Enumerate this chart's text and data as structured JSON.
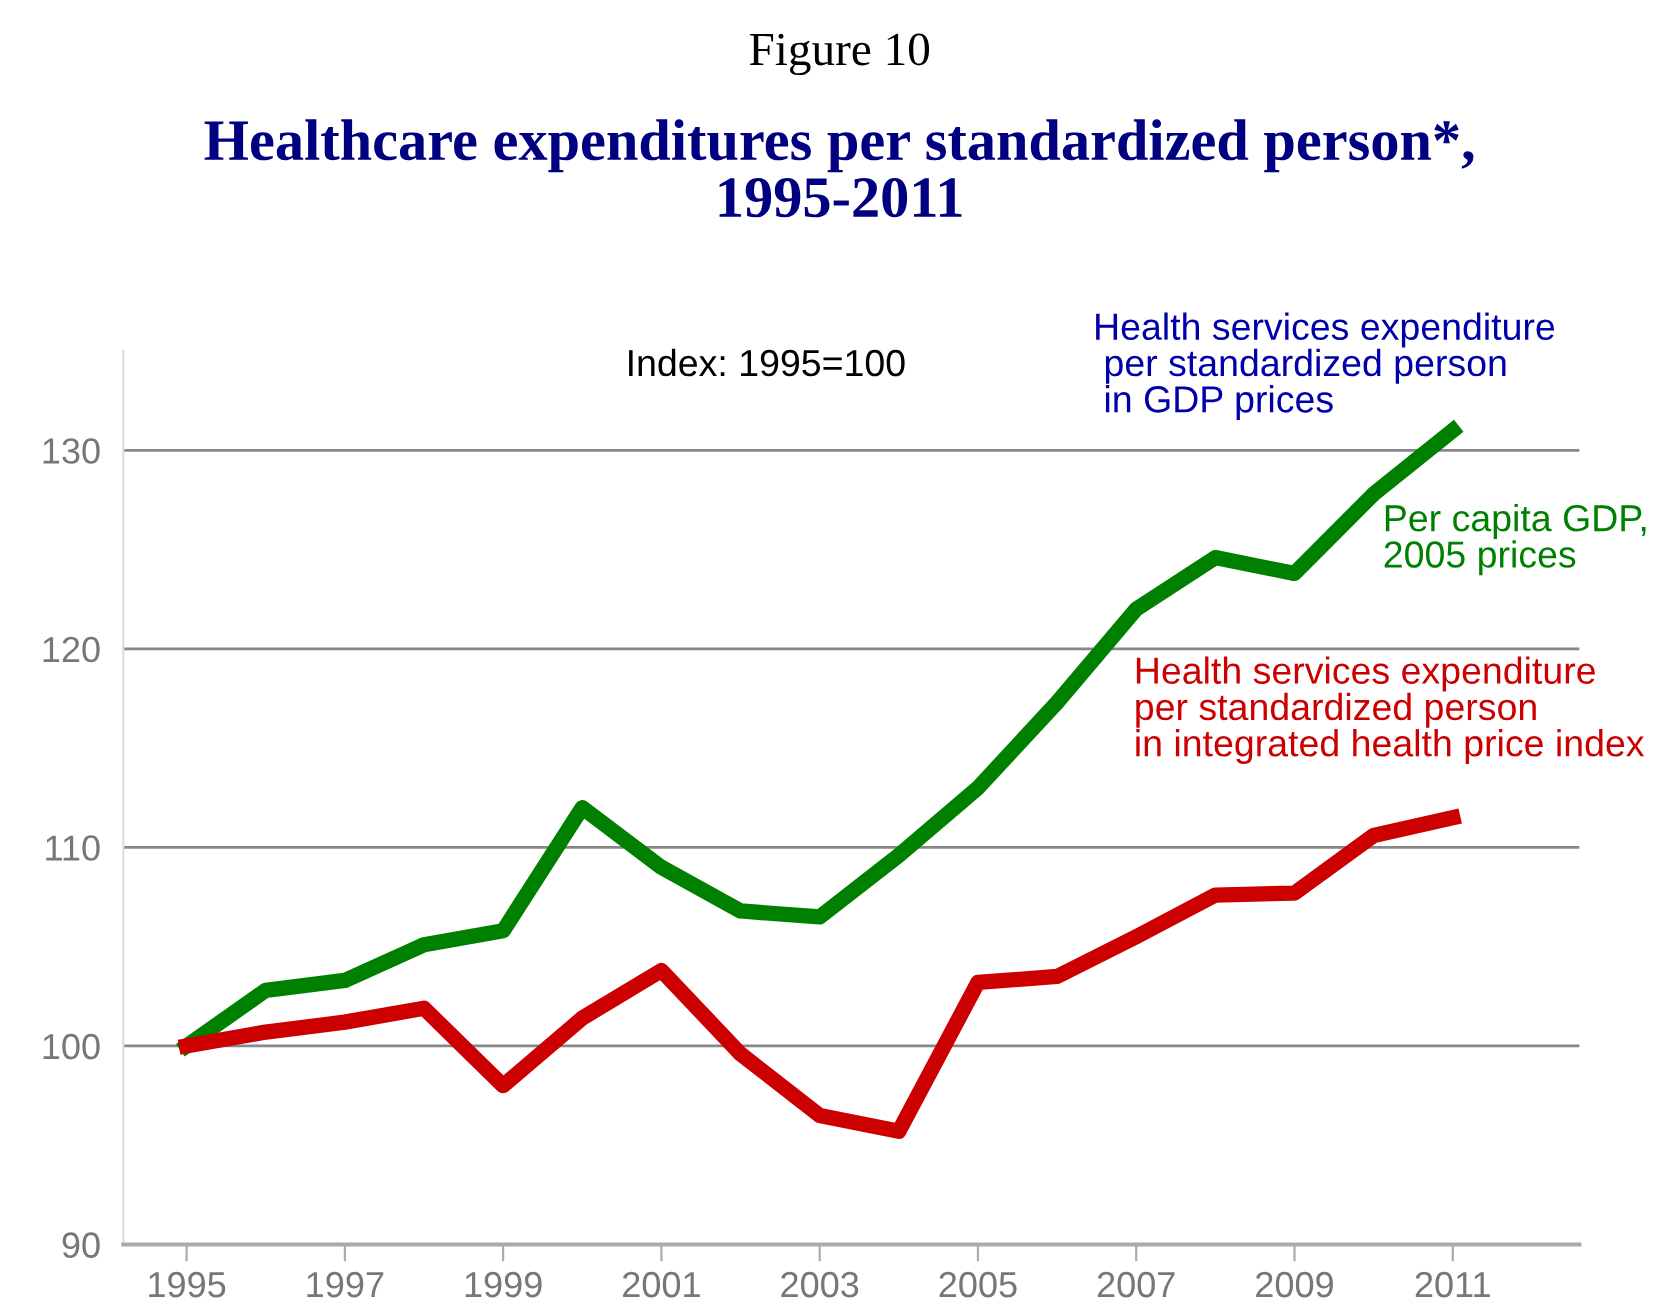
{
  "chart_data": {
    "type": "line",
    "title": "Figure 10",
    "subtitle": "Healthcare expenditures per standardized person*,\n1995-2011",
    "x": [
      1995,
      1996,
      1997,
      1998,
      1999,
      2000,
      2001,
      2002,
      2003,
      2004,
      2005,
      2006,
      2007,
      2008,
      2009,
      2010,
      2011
    ],
    "series": [
      {
        "name": "Per capita GDP,\n2005 prices",
        "color": "#008000",
        "values": [
          100,
          102.8,
          103.3,
          105.1,
          105.8,
          112,
          109,
          106.8,
          106.5,
          109.6,
          113,
          117.3,
          122,
          124.6,
          123.8,
          127.8,
          131
        ]
      },
      {
        "name": "Health services expenditure\nper standardized person\nin integrated health price index",
        "color": "#cc0000",
        "values": [
          100,
          100.7,
          101.2,
          101.9,
          98,
          101.4,
          103.8,
          99.6,
          96.5,
          95.7,
          103.2,
          103.5,
          105.5,
          107.6,
          107.7,
          110.6,
          111.5
        ]
      }
    ],
    "annotations": [
      "Index: 1995=100",
      "Health services expenditure\n per standardized person\n in GDP prices"
    ],
    "xlim": [
      1994.2,
      2012.6
    ],
    "xticks": [
      1995,
      1997,
      1999,
      2001,
      2003,
      2005,
      2007,
      2009,
      2011
    ],
    "ylim": [
      90,
      135
    ],
    "yticks": [
      90,
      100,
      110,
      120,
      130
    ],
    "grid": "y",
    "legend": false,
    "marker": "none",
    "line_style": "solid"
  }
}
